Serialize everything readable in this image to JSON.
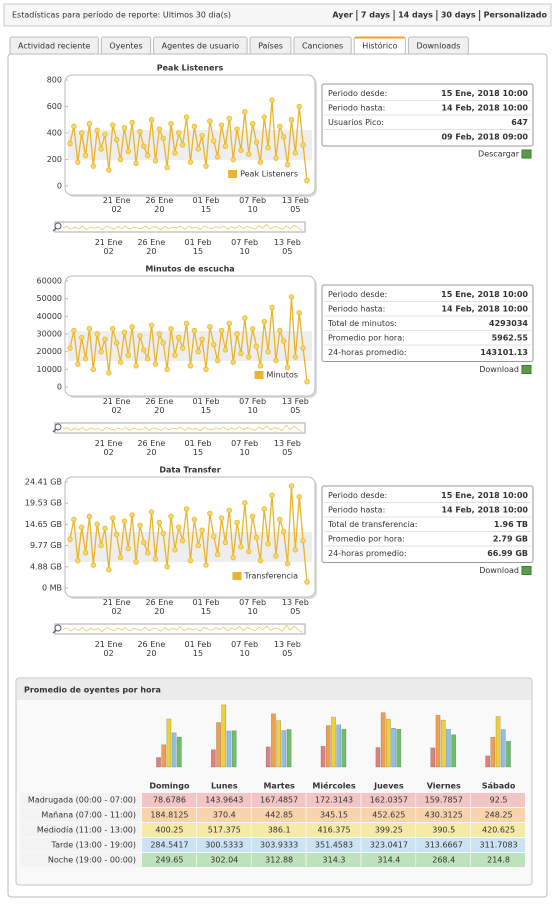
{
  "header": {
    "title": "Estadísticas para período de reporte: Ultimos 30 dia(s)",
    "ranges": [
      "Ayer",
      "7 days",
      "14 days",
      "30 days",
      "Personalizado"
    ]
  },
  "tabs": [
    "Actividad reciente",
    "Oyentes",
    "Agentes de usuario",
    "Países",
    "Canciones",
    "Histórico",
    "Downloads"
  ],
  "chart_data": [
    {
      "type": "line",
      "title": "Peak Listeners",
      "categories": [
        null,
        null,
        null,
        null,
        null,
        null,
        null,
        null,
        null,
        null,
        null,
        null,
        "21 Ene\n02",
        null,
        null,
        null,
        null,
        null,
        null,
        null,
        null,
        null,
        null,
        "26 Ene\n20",
        null,
        null,
        null,
        null,
        null,
        null,
        null,
        null,
        null,
        null,
        null,
        "01 Feb\n15",
        null,
        null,
        null,
        null,
        null,
        null,
        null,
        null,
        null,
        null,
        null,
        "07 Feb\n10",
        null,
        null,
        null,
        null,
        null,
        null,
        null,
        null,
        null,
        null,
        "13 Feb\n05",
        null,
        null,
        null
      ],
      "series": [
        {
          "name": "Peak Listeners",
          "color": "#e9b52c",
          "values": [
            320,
            450,
            180,
            400,
            230,
            470,
            150,
            420,
            280,
            390,
            120,
            460,
            350,
            200,
            440,
            260,
            480,
            170,
            410,
            300,
            230,
            500,
            190,
            430,
            360,
            140,
            470,
            250,
            400,
            310,
            520,
            180,
            450,
            280,
            380,
            150,
            490,
            340,
            220,
            460,
            300,
            510,
            200,
            430,
            270,
            560,
            240,
            470,
            330,
            180,
            520,
            290,
            647,
            210,
            450,
            370,
            160,
            500,
            250,
            600,
            310,
            40
          ]
        }
      ],
      "ylim": [
        0,
        800
      ],
      "yticks": [
        0,
        200,
        400,
        600,
        800
      ],
      "legend": "lower right"
    },
    {
      "type": "line",
      "title": "Minutos de escucha",
      "categories": [
        null,
        null,
        null,
        null,
        null,
        null,
        null,
        null,
        null,
        null,
        null,
        null,
        "21 Ene\n02",
        null,
        null,
        null,
        null,
        null,
        null,
        null,
        null,
        null,
        null,
        "26 Ene\n20",
        null,
        null,
        null,
        null,
        null,
        null,
        null,
        null,
        null,
        null,
        null,
        "01 Feb\n15",
        null,
        null,
        null,
        null,
        null,
        null,
        null,
        null,
        null,
        null,
        null,
        "07 Feb\n10",
        null,
        null,
        null,
        null,
        null,
        null,
        null,
        null,
        null,
        null,
        "13 Feb\n05",
        null,
        null,
        null
      ],
      "series": [
        {
          "name": "Minutos",
          "color": "#e9b52c",
          "values": [
            22000,
            32000,
            13000,
            28000,
            16000,
            33000,
            10000,
            30000,
            20000,
            27000,
            8000,
            33000,
            25000,
            14000,
            31000,
            18000,
            34000,
            12000,
            29000,
            21000,
            16000,
            35000,
            13000,
            30000,
            25000,
            10000,
            33000,
            18000,
            28000,
            22000,
            36000,
            12000,
            32000,
            20000,
            27000,
            10000,
            34000,
            24000,
            15000,
            32000,
            21000,
            36000,
            14000,
            30000,
            19000,
            39000,
            17000,
            33000,
            23000,
            12000,
            37000,
            20000,
            45000,
            15000,
            32000,
            26000,
            11000,
            51000,
            17000,
            42000,
            22000,
            3000
          ]
        }
      ],
      "ylim": [
        0,
        60000
      ],
      "yticks": [
        0,
        10000,
        20000,
        30000,
        40000,
        50000,
        60000
      ],
      "legend": "lower right"
    },
    {
      "type": "line",
      "title": "Data Transfer",
      "categories": [
        null,
        null,
        null,
        null,
        null,
        null,
        null,
        null,
        null,
        null,
        null,
        null,
        "21 Ene\n02",
        null,
        null,
        null,
        null,
        null,
        null,
        null,
        null,
        null,
        null,
        "26 Ene\n20",
        null,
        null,
        null,
        null,
        null,
        null,
        null,
        null,
        null,
        null,
        null,
        "01 Feb\n15",
        null,
        null,
        null,
        null,
        null,
        null,
        null,
        null,
        null,
        null,
        null,
        "07 Feb\n10",
        null,
        null,
        null,
        null,
        null,
        null,
        null,
        null,
        null,
        null,
        "13 Feb\n05",
        null,
        null,
        null
      ],
      "series": [
        {
          "name": "Transferencia",
          "color": "#e9b52c",
          "values": [
            11.2,
            15.8,
            6.3,
            14.0,
            8.1,
            16.5,
            5.3,
            14.7,
            9.8,
            13.7,
            4.2,
            16.1,
            12.3,
            7.0,
            15.4,
            9.1,
            16.8,
            6.0,
            14.4,
            10.5,
            8.1,
            17.5,
            6.7,
            15.1,
            12.6,
            4.9,
            16.5,
            8.8,
            14.0,
            10.9,
            18.2,
            6.3,
            15.8,
            9.8,
            13.3,
            5.3,
            17.2,
            11.9,
            7.7,
            16.1,
            10.5,
            17.9,
            7.0,
            15.1,
            9.5,
            19.6,
            8.4,
            16.5,
            11.6,
            6.3,
            18.2,
            10.2,
            21.4,
            7.4,
            15.8,
            13.0,
            5.6,
            23.5,
            8.8,
            21.0,
            10.9,
            1.4
          ]
        }
      ],
      "ylim": [
        0,
        24.41
      ],
      "yticks": [
        {
          "value": 0,
          "label": "0 MB"
        },
        {
          "value": 4.88,
          "label": "4.88 GB"
        },
        {
          "value": 9.77,
          "label": "9.77 GB"
        },
        {
          "value": 14.65,
          "label": "14.65 GB"
        },
        {
          "value": 19.53,
          "label": "19.53 GB"
        },
        {
          "value": 24.41,
          "label": "24.41 GB"
        }
      ],
      "legend": "lower right"
    },
    {
      "type": "bar",
      "title": "Promedio de oyentes por hora",
      "categories": [
        "Domingo",
        "Lunes",
        "Martes",
        "Miércoles",
        "Jueves",
        "Viernes",
        "Sábado"
      ],
      "series": [
        {
          "name": "Madrugada (00:00 - 07:00)",
          "color": "#e0807f",
          "values": [
            78.6786,
            143.9643,
            167.4857,
            172.3143,
            162.0357,
            159.7857,
            92.5
          ]
        },
        {
          "name": "Mañana (07:00 - 11:00)",
          "color": "#f0a04c",
          "values": [
            184.8125,
            370.4,
            442.85,
            345.15,
            452.625,
            430.3125,
            248.25
          ]
        },
        {
          "name": "Mediodía (11:00 - 13:00)",
          "color": "#ecd03c",
          "values": [
            400.25,
            517.375,
            386.1,
            416.375,
            399.25,
            390.5,
            420.625
          ]
        },
        {
          "name": "Tarde (13:00 - 19:00)",
          "color": "#8fc0e4",
          "values": [
            284.5417,
            300.5333,
            303.9333,
            351.4583,
            323.0417,
            313.6667,
            311.7083
          ]
        },
        {
          "name": "Noche (19:00 - 00:00)",
          "color": "#6fbf6a",
          "values": [
            249.65,
            302.04,
            312.88,
            314.3,
            314.4,
            268.4,
            214.8
          ]
        }
      ]
    }
  ],
  "info_boxes": [
    {
      "rows": [
        {
          "label": "Periodo desde:",
          "value": "15 Ene, 2018 10:00"
        },
        {
          "label": "Periodo hasta:",
          "value": "14 Feb, 2018 10:00"
        },
        {
          "label": "Usuarios Pico:",
          "value": "647"
        },
        {
          "value": "09 Feb, 2018 09:00"
        }
      ],
      "link": "Descargar"
    },
    {
      "rows": [
        {
          "label": "Periodo desde:",
          "value": "15 Ene, 2018 10:00"
        },
        {
          "label": "Periodo hasta:",
          "value": "14 Feb, 2018 10:00"
        },
        {
          "label": "Total de minutos:",
          "value": "4293034"
        },
        {
          "label": "Promedio por hora:",
          "value": "5962.55"
        },
        {
          "label": "24-horas promedio:",
          "value": "143101.13"
        }
      ],
      "link": "Download"
    },
    {
      "rows": [
        {
          "label": "Periodo desde:",
          "value": "15 Ene, 2018 10:00"
        },
        {
          "label": "Periodo hasta:",
          "value": "14 Feb, 2018 10:00"
        },
        {
          "label": "Total de transferencia:",
          "value": "1.96 TB"
        },
        {
          "label": "Promedio por hora:",
          "value": "2.79 GB"
        },
        {
          "label": "24-horas promedio:",
          "value": "66.99 GB"
        }
      ],
      "link": "Download"
    }
  ]
}
